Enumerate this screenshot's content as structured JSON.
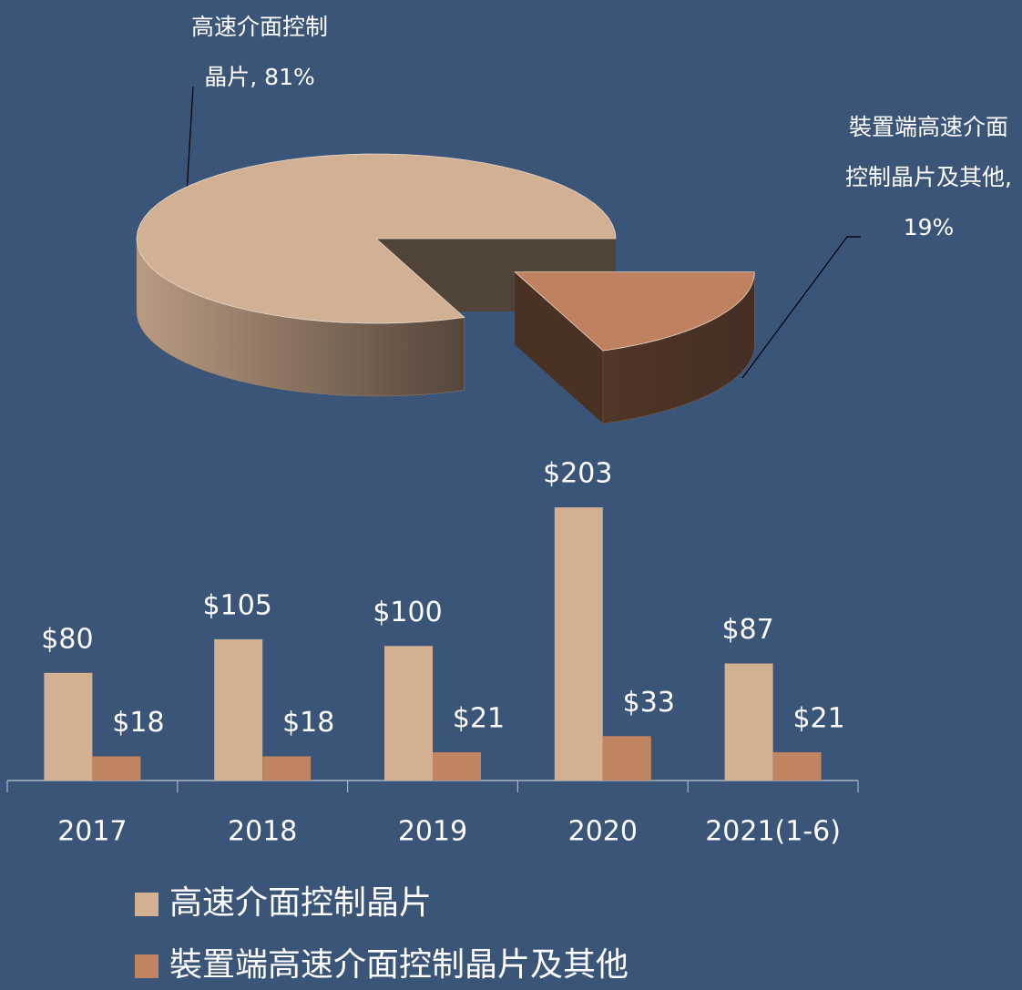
{
  "chart_data": [
    {
      "type": "pie",
      "values": [
        81,
        19
      ],
      "value_labels": [
        "高速介面控制晶片, 81%",
        "裝置端高速介面控制晶片及其他, 19%"
      ],
      "colors": [
        "#d2b093",
        "#bf8160"
      ]
    },
    {
      "type": "bar",
      "categories": [
        "2017",
        "2018",
        "2019",
        "2020",
        "2021(1-6)"
      ],
      "series": [
        {
          "name": "高速介面控制晶片",
          "color": "#d4b093",
          "values": [
            80,
            105,
            100,
            203,
            87
          ],
          "value_labels": [
            "$80",
            "$105",
            "$100",
            "$203",
            "$87"
          ]
        },
        {
          "name": "裝置端高速介面控制晶片及其他",
          "color": "#c08460",
          "values": [
            18,
            18,
            21,
            33,
            21
          ],
          "value_labels": [
            "$18",
            "$18",
            "$21",
            "$33",
            "$21"
          ]
        }
      ],
      "ylim": [
        0,
        220
      ]
    }
  ]
}
